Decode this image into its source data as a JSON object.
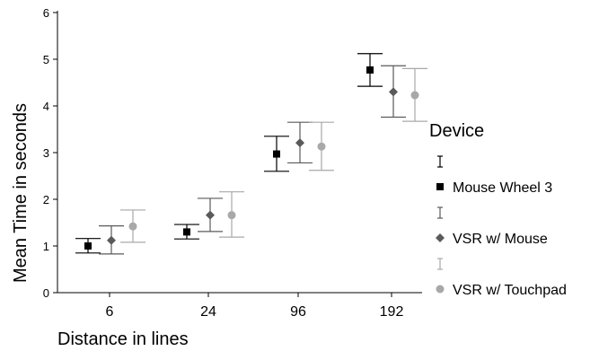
{
  "chart_data": {
    "type": "scatter",
    "title": "",
    "xlabel": "Distance in lines",
    "ylabel": "Mean Time in seconds",
    "categories": [
      "6",
      "24",
      "96",
      "192"
    ],
    "ylim": [
      0,
      6
    ],
    "yticks": [
      0,
      1,
      2,
      3,
      4,
      5,
      6
    ],
    "grid": false,
    "legend": {
      "title": "Device",
      "placement": "right"
    },
    "series": [
      {
        "name": "Mouse Wheel 3",
        "color": "#000000",
        "marker": "square",
        "values": [
          1.0,
          1.3,
          2.97,
          4.77
        ],
        "lower": [
          0.85,
          1.15,
          2.6,
          4.42
        ],
        "upper": [
          1.16,
          1.46,
          3.35,
          5.12
        ]
      },
      {
        "name": "VSR w/ Mouse",
        "color": "#5a5a5a",
        "marker": "diamond",
        "values": [
          1.12,
          1.66,
          3.21,
          4.3
        ],
        "lower": [
          0.83,
          1.31,
          2.78,
          3.76
        ],
        "upper": [
          1.43,
          2.02,
          3.65,
          4.86
        ]
      },
      {
        "name": "VSR w/ Touchpad",
        "color": "#a8a8a8",
        "marker": "circle",
        "values": [
          1.42,
          1.66,
          3.13,
          4.23
        ],
        "lower": [
          1.08,
          1.19,
          2.62,
          3.67
        ],
        "upper": [
          1.77,
          2.16,
          3.65,
          4.8
        ]
      }
    ]
  }
}
